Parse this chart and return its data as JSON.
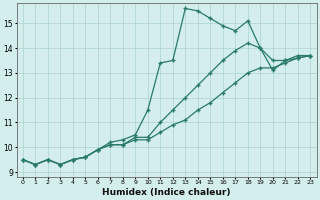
{
  "xlabel": "Humidex (Indice chaleur)",
  "x_values": [
    0,
    1,
    2,
    3,
    4,
    5,
    6,
    7,
    8,
    9,
    10,
    11,
    12,
    13,
    14,
    15,
    16,
    17,
    18,
    19,
    20,
    21,
    22,
    23
  ],
  "line1_y": [
    9.5,
    9.3,
    9.5,
    9.3,
    9.5,
    9.6,
    9.9,
    10.2,
    10.3,
    10.5,
    11.5,
    13.4,
    13.5,
    15.6,
    15.5,
    15.2,
    14.9,
    14.7,
    15.1,
    14.0,
    13.1,
    13.5,
    13.7,
    13.7
  ],
  "line2_y": [
    9.5,
    9.3,
    9.5,
    9.3,
    9.5,
    9.6,
    9.9,
    10.1,
    10.1,
    10.4,
    10.4,
    11.0,
    11.5,
    12.0,
    12.5,
    13.0,
    13.5,
    13.9,
    14.2,
    14.0,
    13.5,
    13.5,
    13.6,
    13.7
  ],
  "line3_y": [
    9.5,
    9.3,
    9.5,
    9.3,
    9.5,
    9.6,
    9.9,
    10.1,
    10.1,
    10.3,
    10.3,
    10.6,
    10.9,
    11.1,
    11.5,
    11.8,
    12.2,
    12.6,
    13.0,
    13.2,
    13.2,
    13.4,
    13.6,
    13.7
  ],
  "line_color": "#2a7a6a",
  "bg_color": "#d4eeed",
  "grid_color": "#aad4d0",
  "ylim_min": 8.8,
  "ylim_max": 15.8,
  "yticks": [
    9,
    10,
    11,
    12,
    13,
    14,
    15
  ],
  "xlim_min": -0.5,
  "xlim_max": 23.5,
  "marker": "+",
  "markersize": 3.5,
  "linewidth": 0.9
}
